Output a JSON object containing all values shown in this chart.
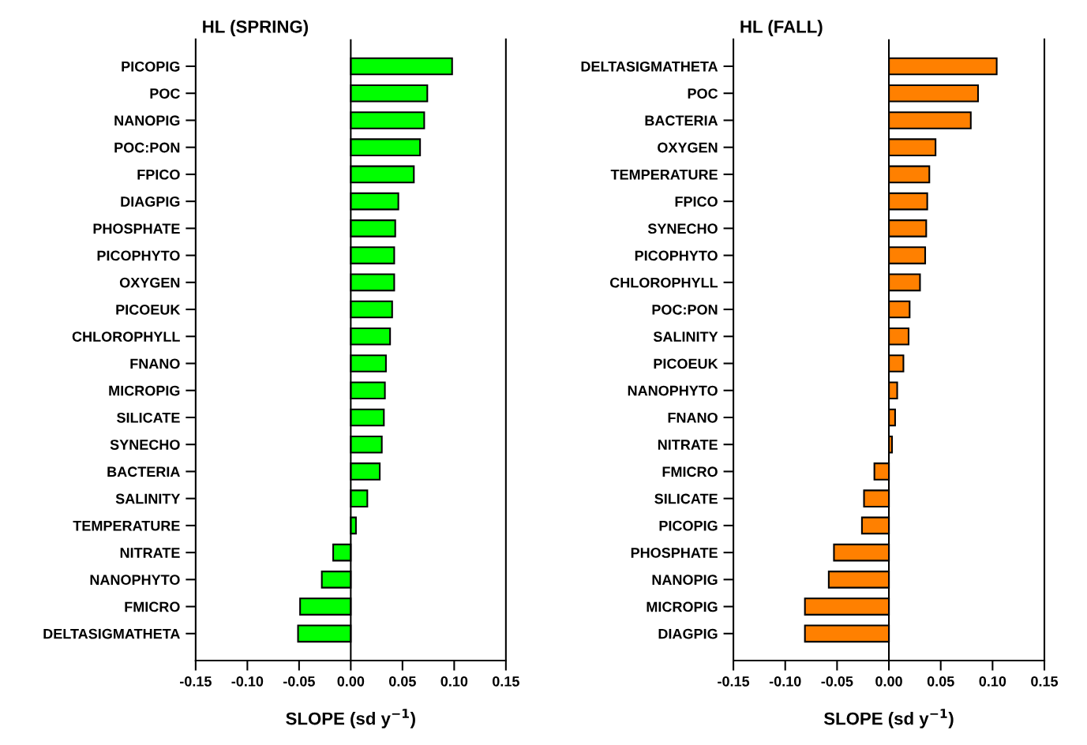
{
  "chart_data": [
    {
      "type": "bar",
      "orientation": "horizontal",
      "title": "HL (SPRING)",
      "xlabel": "SLOPE (sd y$^{−1}$)",
      "categories": [
        "PICOPIG",
        "POC",
        "NANOPIG",
        "POC:PON",
        "FPICO",
        "DIAGPIG",
        "PHOSPHATE",
        "PICOPHYTO",
        "OXYGEN",
        "PICOEUK",
        "CHLOROPHYLL",
        "FNANO",
        "MICROPIG",
        "SILICATE",
        "SYNECHO",
        "BACTERIA",
        "SALINITY",
        "TEMPERATURE",
        "NITRATE",
        "NANOPHYTO",
        "FMICRO",
        "DELTASIGMATHETA"
      ],
      "values": [
        0.098,
        0.074,
        0.071,
        0.067,
        0.061,
        0.046,
        0.043,
        0.042,
        0.042,
        0.04,
        0.038,
        0.034,
        0.033,
        0.032,
        0.03,
        0.028,
        0.016,
        0.005,
        -0.017,
        -0.028,
        -0.049,
        -0.051
      ],
      "color": "#00ff00",
      "xlim": [
        -0.15,
        0.15
      ],
      "xticks": [
        {
          "value": -0.15,
          "label": "-0.15"
        },
        {
          "value": -0.1,
          "label": "-0.10"
        },
        {
          "value": -0.05,
          "label": "-0.05"
        },
        {
          "value": 0,
          "label": "0.00"
        },
        {
          "value": 0.05,
          "label": "0.05"
        },
        {
          "value": 0.1,
          "label": "0.10"
        },
        {
          "value": 0.15,
          "label": "0.15"
        }
      ],
      "ref_lines": [
        {
          "axis": "x",
          "value": 0,
          "label": null,
          "color": "#000000"
        }
      ],
      "grid": false
    },
    {
      "type": "bar",
      "orientation": "horizontal",
      "title": "HL (FALL)",
      "xlabel": "SLOPE (sd y$^{−1}$)",
      "categories": [
        "DELTASIGMATHETA",
        "POC",
        "BACTERIA",
        "OXYGEN",
        "TEMPERATURE",
        "FPICO",
        "SYNECHO",
        "PICOPHYTO",
        "CHLOROPHYLL",
        "POC:PON",
        "SALINITY",
        "PICOEUK",
        "NANOPHYTO",
        "FNANO",
        "NITRATE",
        "FMICRO",
        "SILICATE",
        "PICOPIG",
        "PHOSPHATE",
        "NANOPIG",
        "MICROPIG",
        "DIAGPIG"
      ],
      "values": [
        0.104,
        0.086,
        0.079,
        0.045,
        0.039,
        0.037,
        0.036,
        0.035,
        0.03,
        0.02,
        0.019,
        0.014,
        0.008,
        0.006,
        0.003,
        -0.014,
        -0.024,
        -0.026,
        -0.053,
        -0.058,
        -0.081,
        -0.081
      ],
      "color": "#ff8000",
      "xlim": [
        -0.15,
        0.15
      ],
      "xticks": [
        {
          "value": -0.15,
          "label": "-0.15"
        },
        {
          "value": -0.1,
          "label": "-0.10"
        },
        {
          "value": -0.05,
          "label": "-0.05"
        },
        {
          "value": 0,
          "label": "0.00"
        },
        {
          "value": 0.05,
          "label": "0.05"
        },
        {
          "value": 0.1,
          "label": "0.10"
        },
        {
          "value": 0.15,
          "label": "0.15"
        }
      ],
      "ref_lines": [
        {
          "axis": "x",
          "value": 0,
          "label": null,
          "color": "#000000"
        }
      ],
      "grid": false
    }
  ]
}
